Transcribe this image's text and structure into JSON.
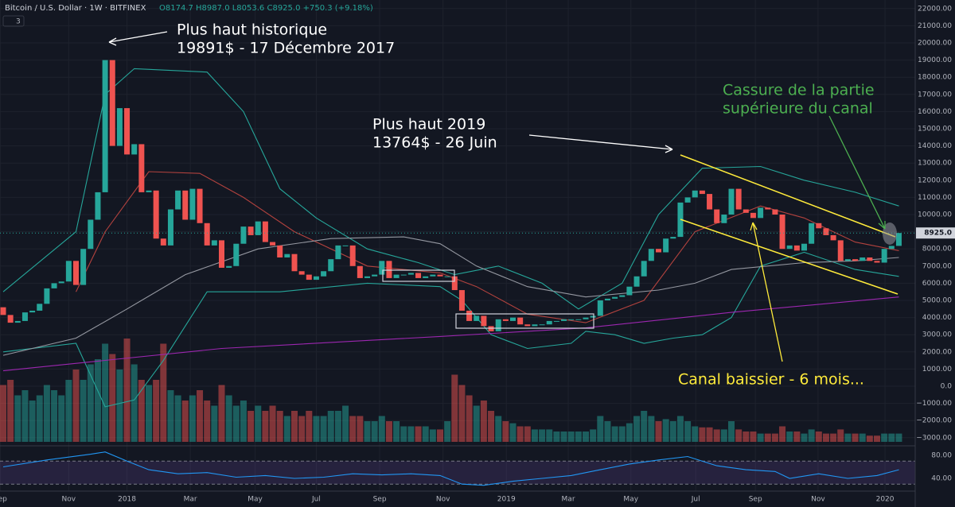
{
  "chart_data": {
    "type": "candlestick",
    "title": "Bitcoin / U.S. Dollar · 1W · BITFINEX",
    "ohlc_label": "O8174.7 H8987.0 L8053.6 C8925.0 +750.3 (+9.18%)",
    "indicator_count": 3,
    "up_color": "#26a69a",
    "down_color": "#ef5350",
    "open": [
      4600,
      4150,
      3700,
      3800,
      4300,
      4400,
      4800,
      5700,
      6000,
      6100,
      7300,
      5900,
      8000,
      9700,
      11300,
      19000,
      14000,
      16200,
      13500,
      14100,
      11300,
      11400,
      8600,
      8200,
      10300,
      11400,
      9700,
      11500,
      9500,
      8200,
      8500,
      6900,
      7000,
      8300,
      9300,
      8800,
      9600,
      8400,
      8200,
      7500,
      7700,
      6700,
      6500,
      6200,
      6400,
      6700,
      7400,
      8200,
      8200,
      7000,
      6300,
      6400,
      6500,
      7300,
      6300,
      6500,
      6500,
      6600,
      6300,
      6400,
      6500,
      6400,
      6400,
      5600,
      4400,
      3800,
      4100,
      3500,
      3200,
      3900,
      3800,
      4000,
      3600,
      3500,
      3600,
      3600,
      3800,
      3800,
      3900,
      3900,
      3900,
      4000,
      4100,
      5000,
      5100,
      5200,
      5300,
      5800,
      6400,
      7300,
      8000,
      7800,
      8600,
      8700,
      10700,
      11000,
      11400,
      11200,
      10300,
      9500,
      10000,
      11500,
      10300,
      10100,
      9800,
      10400,
      10300,
      10000,
      8000,
      8200,
      7900,
      8300,
      9500,
      9200,
      8800,
      8500,
      7300,
      7400,
      7300,
      7500,
      7300,
      7200,
      8000,
      8174.7
    ],
    "close": [
      4150,
      3700,
      3800,
      4300,
      4400,
      4800,
      5700,
      6000,
      6100,
      7300,
      5900,
      8000,
      9700,
      11300,
      19000,
      14000,
      16200,
      13500,
      14100,
      11300,
      11400,
      8600,
      8200,
      10300,
      11400,
      9700,
      11500,
      9500,
      8200,
      8500,
      6900,
      7000,
      8300,
      9300,
      8800,
      9600,
      8400,
      8200,
      7500,
      7700,
      6700,
      6500,
      6200,
      6400,
      6700,
      7400,
      8200,
      8200,
      7000,
      6300,
      6400,
      6500,
      7300,
      6300,
      6500,
      6500,
      6600,
      6300,
      6400,
      6500,
      6400,
      6400,
      5600,
      4400,
      3800,
      4100,
      3500,
      3200,
      3900,
      3800,
      4000,
      3600,
      3500,
      3600,
      3600,
      3800,
      3800,
      3900,
      3900,
      3900,
      4000,
      4100,
      5000,
      5100,
      5200,
      5300,
      5800,
      6400,
      7300,
      8000,
      7800,
      8600,
      8700,
      10700,
      11000,
      11400,
      11200,
      10300,
      9500,
      10000,
      11500,
      10300,
      10100,
      9800,
      10400,
      10300,
      10000,
      8000,
      8200,
      7900,
      8300,
      9500,
      9200,
      8800,
      8500,
      7300,
      7400,
      7300,
      7500,
      7300,
      7200,
      8000,
      8174.7,
      8925
    ],
    "volume": [
      55,
      60,
      45,
      50,
      40,
      45,
      55,
      50,
      45,
      60,
      70,
      60,
      75,
      80,
      95,
      85,
      70,
      100,
      75,
      60,
      55,
      60,
      95,
      50,
      45,
      40,
      45,
      50,
      40,
      35,
      55,
      45,
      35,
      40,
      30,
      35,
      30,
      35,
      30,
      25,
      30,
      25,
      30,
      25,
      25,
      30,
      30,
      35,
      25,
      25,
      20,
      20,
      25,
      20,
      20,
      15,
      15,
      15,
      15,
      12,
      12,
      20,
      65,
      55,
      45,
      35,
      40,
      30,
      25,
      20,
      18,
      15,
      15,
      12,
      12,
      12,
      10,
      10,
      10,
      10,
      10,
      12,
      25,
      20,
      15,
      15,
      18,
      25,
      30,
      25,
      20,
      22,
      20,
      25,
      20,
      15,
      14,
      14,
      12,
      12,
      20,
      12,
      10,
      10,
      8,
      8,
      8,
      15,
      10,
      10,
      8,
      12,
      10,
      8,
      8,
      12,
      8,
      8,
      8,
      6,
      6,
      8,
      8,
      8
    ],
    "overlays": [
      {
        "color": "#26a69a",
        "x": [
          0,
          10,
          14,
          18,
          28,
          33,
          38,
          43,
          50,
          57,
          62,
          68,
          74,
          79,
          85,
          90,
          96,
          104,
          110,
          117,
          123
        ],
        "values": [
          5500,
          9000,
          17000,
          18500,
          18300,
          16000,
          11500,
          9800,
          8000,
          7200,
          6500,
          7000,
          6000,
          4500,
          6000,
          10000,
          12700,
          12800,
          12000,
          11300,
          10500
        ]
      },
      {
        "color": "#26a69a",
        "x": [
          0,
          10,
          14,
          18,
          22,
          28,
          38,
          50,
          60,
          63,
          67,
          72,
          78,
          80,
          84,
          88,
          92,
          96,
          100,
          104,
          110,
          117,
          123
        ],
        "values": [
          2000,
          2500,
          -1200,
          -800,
          1500,
          5500,
          5500,
          6000,
          5800,
          5000,
          3000,
          2200,
          2500,
          3200,
          3000,
          2500,
          2800,
          3000,
          4000,
          7000,
          7800,
          6800,
          6400
        ]
      },
      {
        "color": "#b2423e",
        "x": [
          10,
          14,
          20,
          27,
          33,
          40,
          50,
          60,
          65,
          72,
          80,
          88,
          95,
          104,
          110,
          117,
          123
        ],
        "values": [
          5500,
          9000,
          12500,
          12400,
          11000,
          9000,
          7000,
          6600,
          5800,
          4200,
          3700,
          5000,
          9000,
          10500,
          9800,
          8400,
          7900
        ]
      },
      {
        "color": "#9598a1",
        "x": [
          0,
          10,
          17,
          25,
          35,
          45,
          55,
          60,
          65,
          72,
          80,
          90,
          95,
          100,
          110,
          117,
          123
        ],
        "values": [
          1800,
          2800,
          4500,
          6500,
          8000,
          8600,
          8700,
          8300,
          7000,
          5800,
          5200,
          5600,
          6000,
          6800,
          7200,
          7300,
          7500
        ]
      },
      {
        "color": "#9c27b0",
        "x": [
          0,
          30,
          60,
          80,
          100,
          123
        ],
        "values": [
          900,
          2200,
          2900,
          3400,
          4300,
          5200
        ]
      }
    ],
    "ylim": [
      -3426,
      22500
    ],
    "yticks": [
      {
        "value": 22000,
        "label": "22000.00"
      },
      {
        "value": 21000,
        "label": "21000.00"
      },
      {
        "value": 20000,
        "label": "20000.00"
      },
      {
        "value": 19000,
        "label": "19000.00"
      },
      {
        "value": 18000,
        "label": "18000.00"
      },
      {
        "value": 17000,
        "label": "17000.00"
      },
      {
        "value": 16000,
        "label": "16000.00"
      },
      {
        "value": 15000,
        "label": "15000.00"
      },
      {
        "value": 14000,
        "label": "14000.00"
      },
      {
        "value": 13000,
        "label": "13000.00"
      },
      {
        "value": 12000,
        "label": "12000.00"
      },
      {
        "value": 11000,
        "label": "11000.00"
      },
      {
        "value": 10000,
        "label": "10000.00"
      },
      {
        "value": 9000,
        "label": "9000.00"
      },
      {
        "value": 8000,
        "label": "8000.00"
      },
      {
        "value": 7000,
        "label": "7000.00"
      },
      {
        "value": 6000,
        "label": "6000.00"
      },
      {
        "value": 5000,
        "label": "5000.00"
      },
      {
        "value": 4000,
        "label": "4000.00"
      },
      {
        "value": 3000,
        "label": "3000.00"
      },
      {
        "value": 2000,
        "label": "2000.00"
      },
      {
        "value": 1000,
        "label": "1000.00"
      },
      {
        "value": 0,
        "label": "0.0"
      },
      {
        "value": -1000,
        "label": "−1000.00"
      },
      {
        "value": -2000,
        "label": "−2000.00"
      },
      {
        "value": -3000,
        "label": "−3000.00"
      }
    ],
    "xticks": [
      {
        "value": -0.4,
        "label": "Sep"
      },
      {
        "value": 9,
        "label": "Nov"
      },
      {
        "value": 17,
        "label": "2018"
      },
      {
        "value": 25.7,
        "label": "Mar"
      },
      {
        "value": 34.6,
        "label": "May"
      },
      {
        "value": 43,
        "label": "Jul"
      },
      {
        "value": 51.7,
        "label": "Sep"
      },
      {
        "value": 60.4,
        "label": "Nov"
      },
      {
        "value": 69.1,
        "label": "2019"
      },
      {
        "value": 77.6,
        "label": "Mar"
      },
      {
        "value": 86.2,
        "label": "May"
      },
      {
        "value": 95.1,
        "label": "Jul"
      },
      {
        "value": 103.3,
        "label": "Sep"
      },
      {
        "value": 111.9,
        "label": "Nov"
      },
      {
        "value": 121.1,
        "label": "2020"
      }
    ],
    "last_price": {
      "value": 8925,
      "label": "8925.0"
    },
    "rsi": {
      "color": "#2196f3",
      "band": [
        30,
        70
      ],
      "x": [
        0,
        6,
        12,
        14,
        17,
        20,
        24,
        28,
        32,
        36,
        40,
        44,
        48,
        52,
        56,
        60,
        63,
        66,
        70,
        74,
        78,
        82,
        86,
        90,
        94,
        98,
        102,
        106,
        108,
        112,
        116,
        120,
        123
      ],
      "values": [
        60,
        72,
        82,
        86,
        70,
        55,
        48,
        50,
        42,
        45,
        40,
        42,
        48,
        46,
        48,
        45,
        30,
        28,
        35,
        40,
        45,
        55,
        65,
        72,
        78,
        62,
        55,
        52,
        40,
        48,
        40,
        45,
        55
      ],
      "ylim": [
        17.9,
        95.2
      ],
      "yticks": [
        {
          "value": 80,
          "label": "80.00"
        },
        {
          "value": 40,
          "label": "40.00"
        }
      ]
    },
    "annotations": [
      {
        "text": "Plus haut historique",
        "color": "#ffffff"
      },
      {
        "text": "19891$ - 17 Décembre 2017",
        "color": "#ffffff"
      },
      {
        "text": "Plus haut 2019",
        "color": "#ffffff"
      },
      {
        "text": "13764$ - 26 Juin",
        "color": "#ffffff"
      },
      {
        "text": "Cassure de la partie",
        "color": "#4caf50"
      },
      {
        "text": "supérieure du canal",
        "color": "#4caf50"
      },
      {
        "text": "Canal baissier - 6 mois...",
        "color": "#ffeb3b"
      }
    ]
  }
}
